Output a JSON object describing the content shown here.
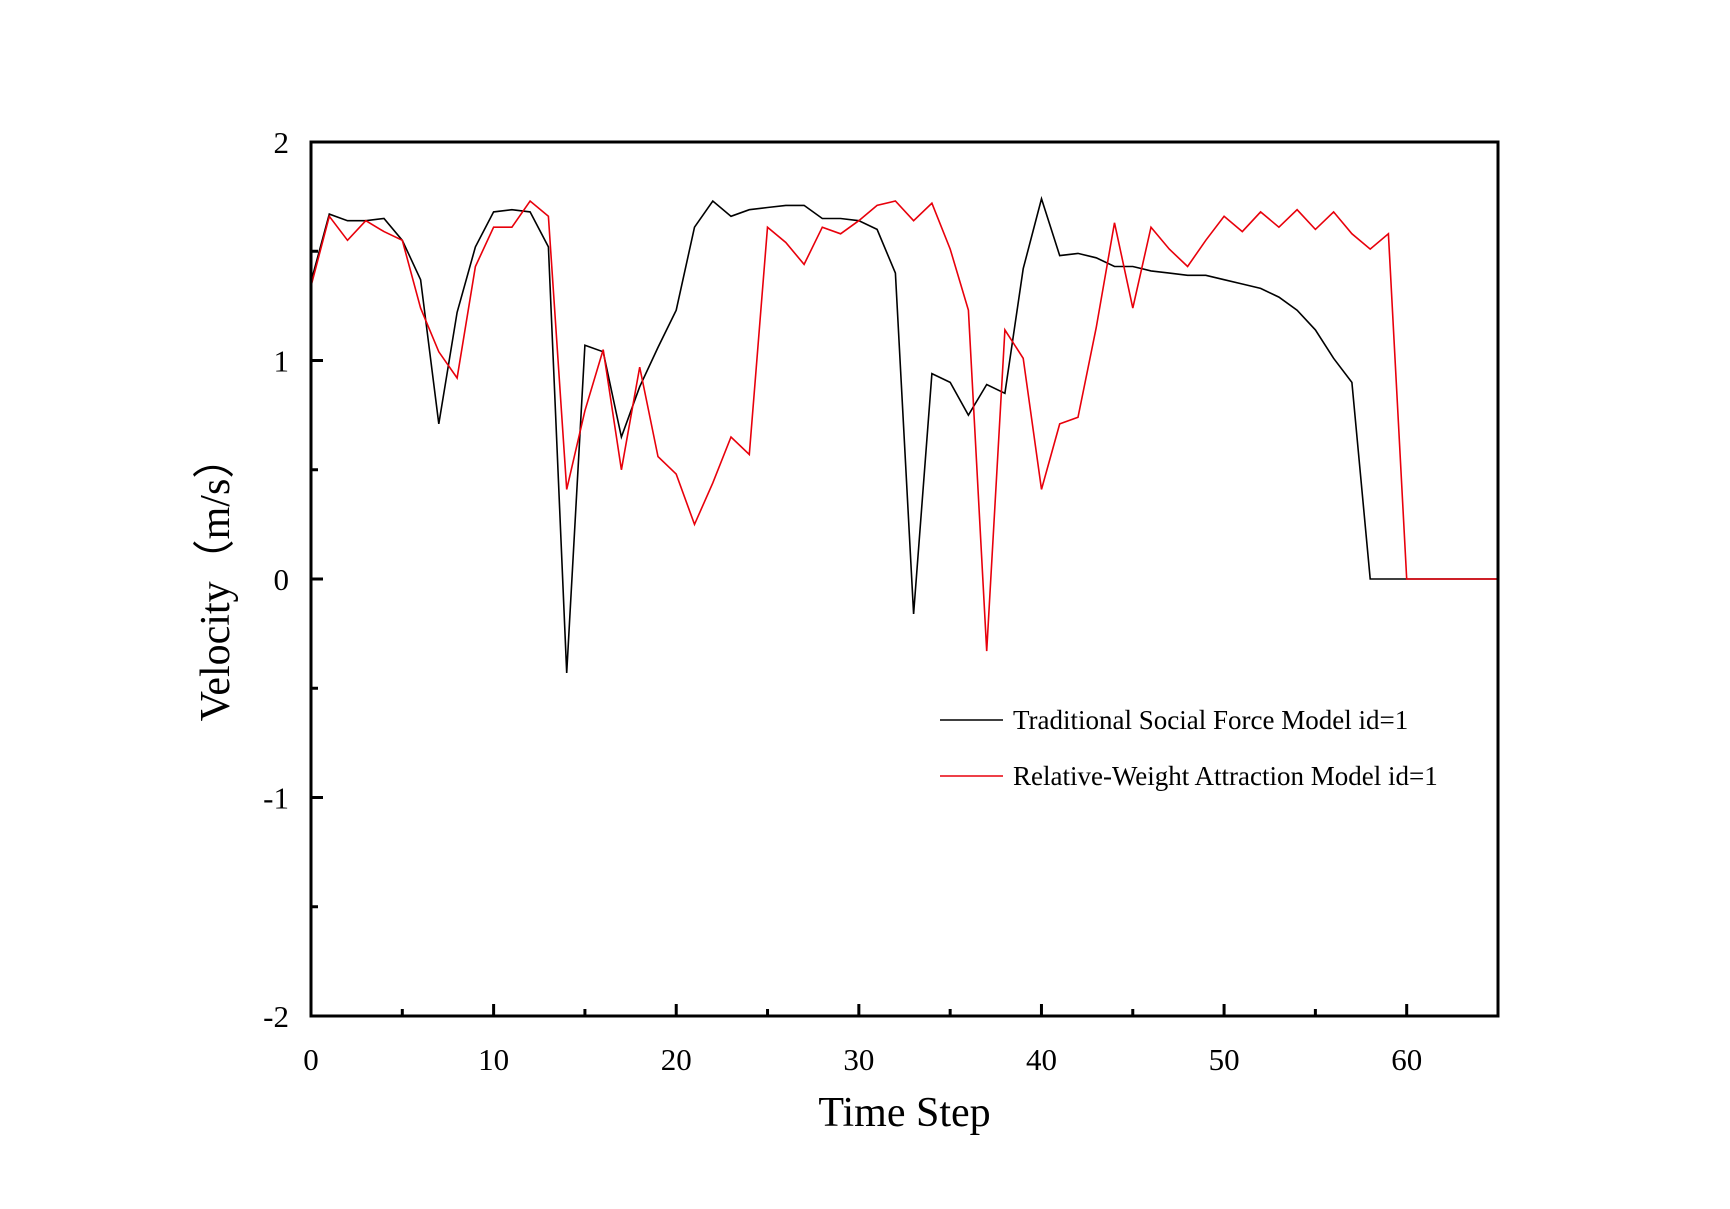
{
  "chart_data": {
    "type": "line",
    "xlabel": "Time Step",
    "ylabel": "Velocity（m/s）",
    "xlim": [
      0,
      65
    ],
    "ylim": [
      -2,
      2
    ],
    "x_ticks": [
      0,
      10,
      20,
      30,
      40,
      50,
      60
    ],
    "x_minor_ticks": [
      5,
      15,
      25,
      35,
      45,
      55
    ],
    "y_ticks": [
      -2,
      -1,
      0,
      1,
      2
    ],
    "y_minor_ticks": [
      -1.5,
      -0.5,
      0.5,
      1.5
    ],
    "grid": false,
    "legend_position": "lower-right",
    "series": [
      {
        "name": "Traditional Social Force Model id=1",
        "color": "#000000",
        "x": [
          0,
          1,
          2,
          3,
          4,
          5,
          6,
          7,
          8,
          9,
          10,
          11,
          12,
          13,
          14,
          15,
          16,
          17,
          18,
          19,
          20,
          21,
          22,
          23,
          24,
          25,
          26,
          27,
          28,
          29,
          30,
          31,
          32,
          33,
          34,
          35,
          36,
          37,
          38,
          39,
          40,
          41,
          42,
          43,
          44,
          45,
          46,
          47,
          48,
          49,
          50,
          51,
          52,
          53,
          54,
          55,
          56,
          57,
          58,
          59,
          60,
          61,
          62,
          63,
          64,
          65
        ],
        "values": [
          1.36,
          1.67,
          1.64,
          1.64,
          1.65,
          1.55,
          1.37,
          0.71,
          1.22,
          1.52,
          1.68,
          1.69,
          1.68,
          1.52,
          -0.43,
          1.07,
          1.04,
          0.65,
          0.88,
          1.06,
          1.23,
          1.61,
          1.73,
          1.66,
          1.69,
          1.7,
          1.71,
          1.71,
          1.65,
          1.65,
          1.64,
          1.6,
          1.4,
          -0.16,
          0.94,
          0.9,
          0.75,
          0.89,
          0.85,
          1.42,
          1.74,
          1.48,
          1.49,
          1.47,
          1.43,
          1.43,
          1.41,
          1.4,
          1.39,
          1.39,
          1.37,
          1.35,
          1.33,
          1.29,
          1.23,
          1.14,
          1.01,
          0.9,
          0,
          0,
          0,
          0,
          0,
          0,
          0,
          0
        ]
      },
      {
        "name": "Relative-Weight Attraction Model id=1",
        "color": "#e8000b",
        "x": [
          0,
          1,
          2,
          3,
          4,
          5,
          6,
          7,
          8,
          9,
          10,
          11,
          12,
          13,
          14,
          15,
          16,
          17,
          18,
          19,
          20,
          21,
          22,
          23,
          24,
          25,
          26,
          27,
          28,
          29,
          30,
          31,
          32,
          33,
          34,
          35,
          36,
          37,
          38,
          39,
          40,
          41,
          42,
          43,
          44,
          45,
          46,
          47,
          48,
          49,
          50,
          51,
          52,
          53,
          54,
          55,
          56,
          57,
          58,
          59,
          60,
          61,
          62,
          63,
          64,
          65
        ],
        "values": [
          1.34,
          1.66,
          1.55,
          1.64,
          1.59,
          1.55,
          1.24,
          1.04,
          0.92,
          1.43,
          1.61,
          1.61,
          1.73,
          1.66,
          0.41,
          0.77,
          1.05,
          0.5,
          0.97,
          0.56,
          0.48,
          0.25,
          0.44,
          0.65,
          0.57,
          1.61,
          1.54,
          1.44,
          1.61,
          1.58,
          1.64,
          1.71,
          1.73,
          1.64,
          1.72,
          1.51,
          1.23,
          -0.33,
          1.14,
          1.01,
          0.41,
          0.71,
          0.74,
          1.15,
          1.63,
          1.24,
          1.61,
          1.51,
          1.43,
          1.55,
          1.66,
          1.59,
          1.68,
          1.61,
          1.69,
          1.6,
          1.68,
          1.58,
          1.51,
          1.58,
          0,
          0,
          0,
          0,
          0,
          0
        ]
      }
    ]
  }
}
